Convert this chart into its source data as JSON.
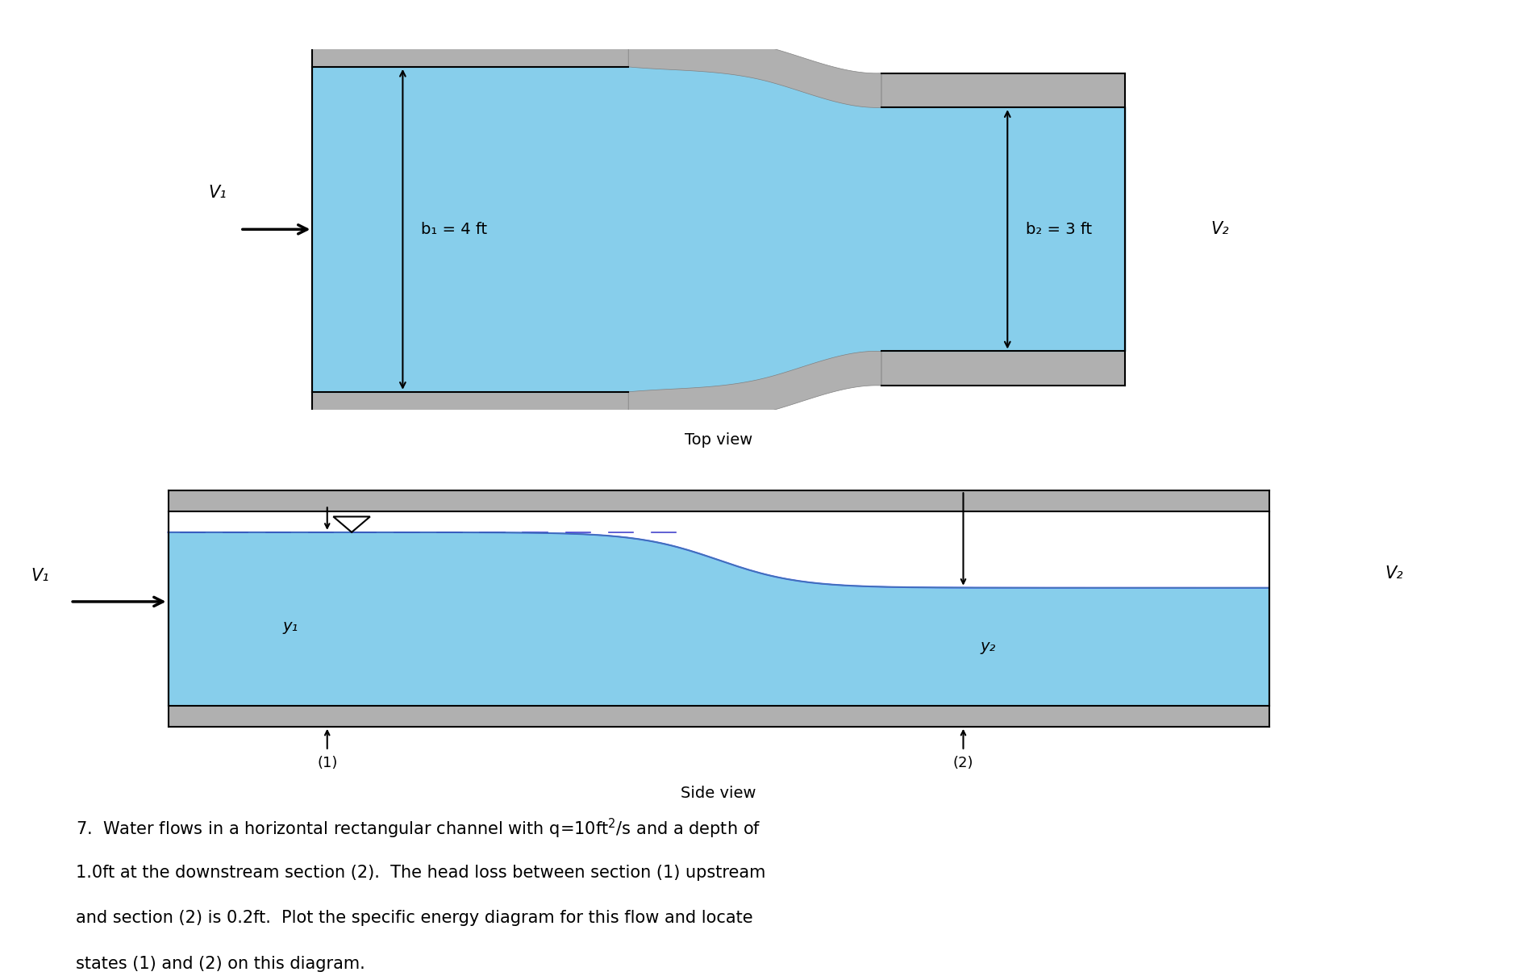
{
  "bg_color": "#ffffff",
  "water_color": "#87CEEB",
  "channel_wall_color": "#b0b0b0",
  "wall_edge_color": "#808080",
  "top_view": {
    "title": "Top view",
    "b1_label": "b₁ = 4 ft",
    "b2_label": "b₂ = 3 ft",
    "V1_label": "V₁",
    "V2_label": "V₂"
  },
  "side_view": {
    "title": "Side view",
    "y1_label": "y₁",
    "y2_label": "y₂",
    "V1_label": "V₁",
    "V2_label": "V₂",
    "section1_label": "(1)",
    "section2_label": "(2)"
  },
  "problem_text_line1": "7.  Water flows in a horizontal rectangular channel with q=10ft",
  "problem_text_sup": "2",
  "problem_text_line1b": "/s and a depth of",
  "problem_text_line2": "1.0ft at the downstream section (2).  The head loss between section (1) upstream",
  "problem_text_line3": "and section (2) is 0.2ft.  Plot the specific energy diagram for this flow and locate",
  "problem_text_line4": "states (1) and (2) on this diagram.",
  "font_size_labels": 14,
  "font_size_title": 14,
  "font_size_problem": 15
}
